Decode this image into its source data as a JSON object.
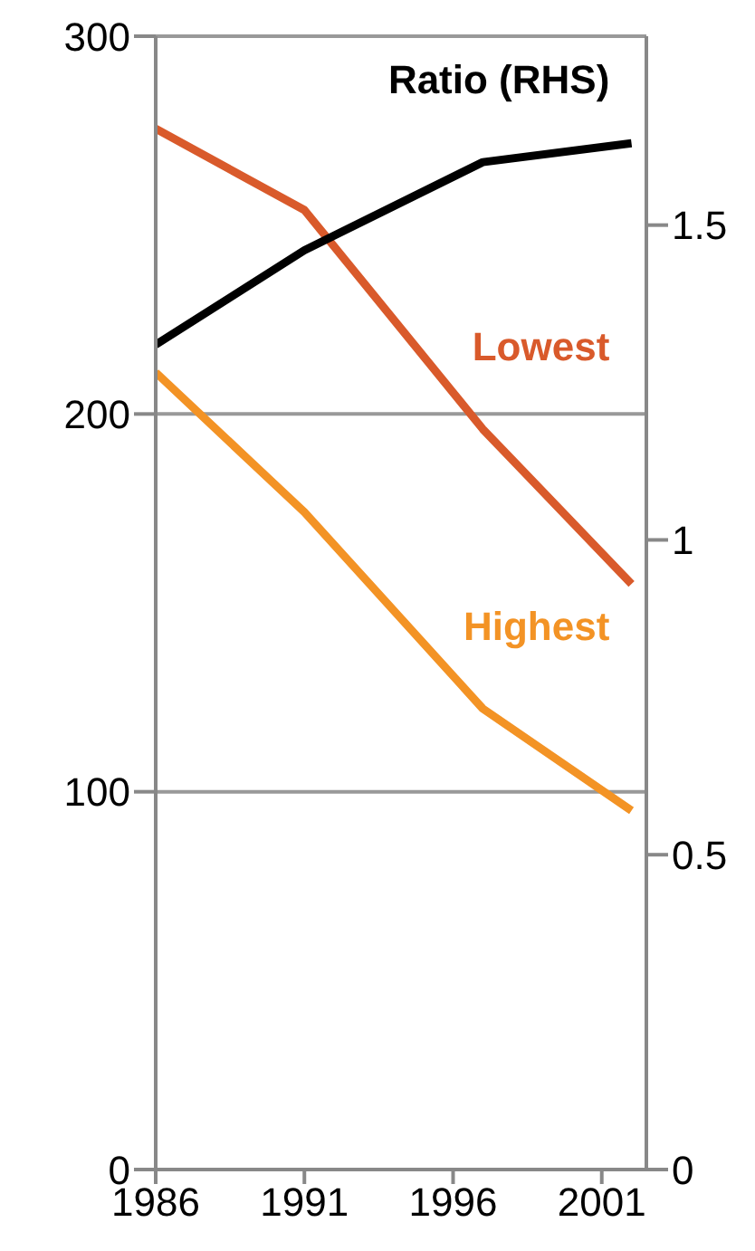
{
  "chart_data": {
    "type": "line",
    "x": [
      1986,
      1991,
      1997,
      2002
    ],
    "xlim": [
      1986,
      2002.5
    ],
    "xticks": [
      1986,
      1991,
      1996,
      2001
    ],
    "ylim": [
      0,
      300
    ],
    "yticks": [
      0,
      100,
      200,
      300
    ],
    "y2lim": [
      0,
      1.8
    ],
    "y2ticks": [
      0,
      0.5,
      1,
      1.5
    ],
    "grid": "y",
    "legend": false,
    "marker": "none",
    "line_style": "solid",
    "series": [
      {
        "name": "Lowest",
        "color": "#d95a2b",
        "values": [
          275.5,
          254,
          196,
          155
        ]
      },
      {
        "name": "Highest",
        "color": "#f39325",
        "values": [
          211,
          174,
          122,
          95
        ]
      },
      {
        "name": "Ratio (RHS)",
        "color": "#000000",
        "values": [
          1.31,
          1.46,
          1.6,
          1.63
        ],
        "axis": "y2"
      }
    ]
  }
}
